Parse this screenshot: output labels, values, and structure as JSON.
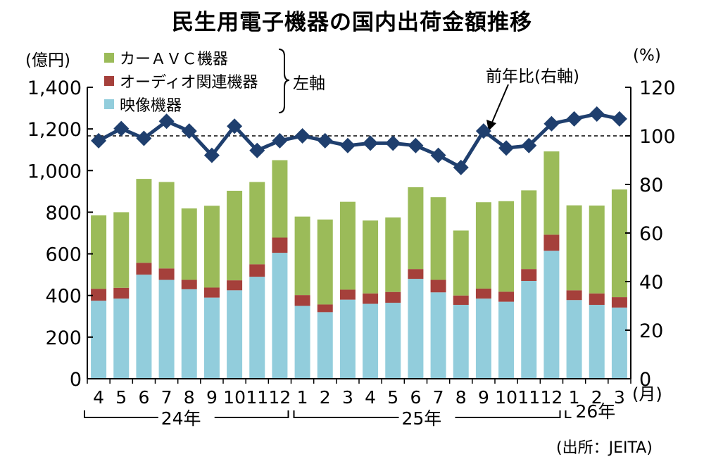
{
  "chart_data": {
    "type": "bar",
    "title": "民生用電子機器の国内出荷金額推移",
    "left_axis": {
      "unit_label": "(億円)",
      "min": 0,
      "max": 1400,
      "ticks": [
        0,
        200,
        400,
        600,
        800,
        1000,
        1200,
        1400
      ],
      "tick_labels": [
        "0",
        "200",
        "400",
        "600",
        "800",
        "1,000",
        "1,200",
        "1,400"
      ]
    },
    "right_axis": {
      "unit_label": "(%)",
      "min": 0,
      "max": 120,
      "ticks": [
        0,
        20,
        40,
        60,
        80,
        100,
        120
      ],
      "tick_labels": [
        "0",
        "20",
        "40",
        "60",
        "80",
        "100",
        "120"
      ]
    },
    "x_unit": "(月)",
    "categories": [
      "4",
      "5",
      "6",
      "7",
      "8",
      "9",
      "10",
      "11",
      "12",
      "1",
      "2",
      "3",
      "4",
      "5",
      "6",
      "7",
      "8",
      "9",
      "10",
      "11",
      "12",
      "1",
      "2",
      "3"
    ],
    "year_groups": [
      {
        "label": "24年",
        "start": 0,
        "end": 8
      },
      {
        "label": "25年",
        "start": 9,
        "end": 20
      },
      {
        "label": "26年",
        "start": 21,
        "end": 23
      }
    ],
    "series": [
      {
        "name": "映像機器",
        "color": "#92cddc",
        "stack": true,
        "values": [
          375,
          385,
          500,
          475,
          430,
          390,
          425,
          490,
          605,
          350,
          320,
          380,
          360,
          365,
          480,
          415,
          355,
          385,
          370,
          470,
          615,
          378,
          355,
          342
        ]
      },
      {
        "name": "オーディオ関連機器",
        "color": "#a5403b",
        "stack": true,
        "values": [
          57,
          52,
          57,
          55,
          45,
          48,
          48,
          60,
          73,
          52,
          37,
          48,
          50,
          52,
          47,
          60,
          45,
          48,
          48,
          57,
          77,
          47,
          55,
          50
        ]
      },
      {
        "name": "カーＡＶＣ機器",
        "color": "#9bbb59",
        "stack": true,
        "values": [
          353,
          363,
          403,
          415,
          343,
          393,
          430,
          395,
          372,
          377,
          408,
          422,
          350,
          358,
          393,
          397,
          312,
          415,
          435,
          378,
          400,
          408,
          422,
          517
        ]
      },
      {
        "name": "前年比(右軸)",
        "color": "#1f3f6e",
        "axis": "right",
        "type": "line",
        "values": [
          98,
          103,
          99,
          106,
          102,
          92,
          104,
          94,
          98,
          100,
          98,
          96,
          97,
          97,
          96,
          92,
          87,
          102,
          95,
          96,
          105,
          107,
          109,
          107
        ]
      }
    ],
    "reference_line_right": 100,
    "legend_group_label": "左軸",
    "line_annotation": "前年比(右軸)"
  },
  "source": "(出所：JEITA)"
}
